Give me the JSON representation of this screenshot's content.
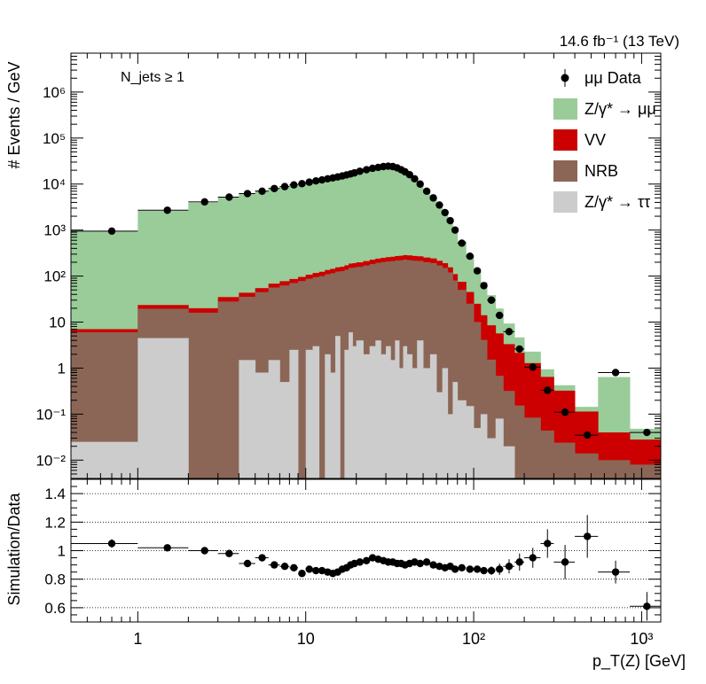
{
  "chart_data": {
    "type": "histogram-stack-with-ratio",
    "lumi_label": "14.6 fb⁻¹ (13 TeV)",
    "selection_label": "N_jets ≥ 1",
    "xlabel": "p_T(Z) [GeV]",
    "ylabel_top": "# Events / GeV",
    "ylabel_bottom": "Simulation/Data",
    "x_scale": "log",
    "xlim": [
      0.4,
      1300
    ],
    "ylim_top": [
      0.004,
      7000000
    ],
    "y_scale_top": "log",
    "ylim_bottom": [
      0.5,
      1.5
    ],
    "x_ticks": [
      "1",
      "10",
      "10²",
      "10³"
    ],
    "y_ticks_top": [
      "10⁻²",
      "10⁻¹",
      "1",
      "10",
      "10²",
      "10³",
      "10⁴",
      "10⁵",
      "10⁶"
    ],
    "y_ticks_bottom": [
      "0.6",
      "0.8",
      "1",
      "1.2",
      "1.4"
    ],
    "legend": [
      {
        "label": "μμ Data",
        "color": "#000000",
        "kind": "marker"
      },
      {
        "label": "Z/γ* → μμ",
        "color": "#99cc99",
        "kind": "fill"
      },
      {
        "label": "VV",
        "color": "#cc0000",
        "kind": "fill"
      },
      {
        "label": "NRB",
        "color": "#8b6656",
        "kind": "fill"
      },
      {
        "label": "Z/γ* → ττ",
        "color": "#cccccc",
        "kind": "fill"
      }
    ],
    "bin_edges": [
      0.4,
      1,
      2,
      3,
      4,
      5,
      6,
      7,
      8,
      9,
      10,
      11,
      12,
      13,
      14,
      15,
      16,
      17,
      18,
      19,
      20,
      22,
      24,
      26,
      28,
      30,
      32,
      34,
      36,
      38,
      40,
      43,
      46,
      50,
      55,
      60,
      65,
      70,
      75,
      80,
      90,
      100,
      110,
      120,
      135,
      150,
      175,
      200,
      250,
      300,
      400,
      550,
      850,
      1300
    ],
    "series": [
      {
        "name": "Z/γ* → ττ",
        "color": "#cccccc",
        "values": [
          0.025,
          4.5,
          0.004,
          0.004,
          1.5,
          0.8,
          1.5,
          0.5,
          2.5,
          0.004,
          2.5,
          3,
          0.004,
          2,
          0.8,
          5,
          0.004,
          2.5,
          6,
          3,
          4,
          2,
          3,
          4,
          2,
          3,
          1.5,
          4,
          1,
          3,
          2,
          1,
          4,
          1,
          2,
          0.3,
          1,
          0.1,
          0.5,
          0.2,
          0.15,
          0.05,
          0.1,
          0.03,
          0.08,
          0.02,
          0.004,
          0.004,
          0.004,
          0.004,
          0.004,
          0.004,
          0.004
        ]
      },
      {
        "name": "NRB",
        "color": "#8b6656",
        "values": [
          6,
          15,
          16,
          28,
          34,
          44,
          55,
          62,
          68,
          78,
          85,
          92,
          100,
          108,
          115,
          120,
          128,
          135,
          145,
          150,
          155,
          168,
          180,
          190,
          200,
          205,
          210,
          215,
          220,
          225,
          220,
          215,
          210,
          200,
          190,
          170,
          150,
          120,
          80,
          50,
          25,
          10,
          4,
          1.5,
          0.6,
          0.3,
          0.15,
          0.08,
          0.04,
          0.02,
          0.01,
          0.006,
          0.004
        ]
      },
      {
        "name": "VV",
        "color": "#cc0000",
        "values": [
          1,
          4,
          4,
          7,
          8,
          10,
          12,
          15,
          16,
          18,
          20,
          22,
          24,
          26,
          28,
          30,
          32,
          34,
          36,
          38,
          40,
          42,
          44,
          46,
          48,
          50,
          52,
          54,
          56,
          58,
          60,
          58,
          55,
          52,
          50,
          45,
          40,
          35,
          30,
          25,
          20,
          15,
          10,
          7,
          5,
          3,
          2,
          1.2,
          0.6,
          0.3,
          0.1,
          0.03,
          0.02
        ]
      },
      {
        "name": "Z/γ* → μμ",
        "color": "#99cc99",
        "values": [
          950,
          2600,
          3900,
          5100,
          6300,
          7300,
          8300,
          8900,
          9700,
          10500,
          11200,
          11800,
          12400,
          13000,
          13600,
          14200,
          14800,
          15500,
          16200,
          17000,
          18500,
          20500,
          22000,
          23500,
          24500,
          25000,
          24500,
          23000,
          21000,
          19000,
          16500,
          13500,
          10500,
          7500,
          5200,
          3600,
          2500,
          1700,
          1000,
          500,
          250,
          120,
          60,
          30,
          14,
          6,
          2.5,
          1,
          0.3,
          0.1,
          0.03,
          0.6,
          0.02
        ]
      }
    ],
    "data": {
      "x": [
        0.7,
        1.5,
        2.5,
        3.5,
        4.5,
        5.5,
        6.5,
        7.5,
        8.5,
        9.5,
        10.5,
        11.5,
        12.5,
        13.5,
        14.5,
        15.5,
        16.5,
        17.5,
        18.5,
        19.5,
        21,
        23,
        25,
        27,
        29,
        31,
        33,
        35,
        37,
        39,
        41.5,
        44.5,
        48,
        52.5,
        57.5,
        62.5,
        67.5,
        72.5,
        77.5,
        85,
        95,
        105,
        115,
        127.5,
        142.5,
        162.5,
        187.5,
        225,
        275,
        350,
        475,
        700,
        1075
      ],
      "y": [
        950,
        2700,
        4100,
        5200,
        6200,
        7000,
        8000,
        8800,
        9600,
        10200,
        11000,
        11700,
        12300,
        13000,
        13600,
        14300,
        15000,
        15800,
        16600,
        17500,
        19000,
        20500,
        22000,
        23000,
        24000,
        24500,
        24000,
        22500,
        20500,
        18500,
        16000,
        13000,
        10000,
        7000,
        5000,
        3500,
        2400,
        1600,
        1000,
        520,
        270,
        130,
        62,
        30,
        14,
        6.2,
        2.6,
        1.05,
        0.33,
        0.11,
        0.035,
        0.8,
        0.04
      ]
    },
    "ratio": {
      "x": [
        0.7,
        1.5,
        2.5,
        3.5,
        4.5,
        5.5,
        6.5,
        7.5,
        8.5,
        9.5,
        10.5,
        11.5,
        12.5,
        13.5,
        14.5,
        15.5,
        16.5,
        17.5,
        18.5,
        19.5,
        21,
        23,
        25,
        27,
        29,
        31,
        33,
        35,
        37,
        39,
        41.5,
        44.5,
        48,
        52.5,
        57.5,
        62.5,
        67.5,
        72.5,
        77.5,
        85,
        95,
        105,
        115,
        127.5,
        142.5,
        162.5,
        187.5,
        225,
        275,
        350,
        475,
        700,
        1075
      ],
      "y": [
        1.05,
        1.02,
        1.0,
        0.98,
        0.91,
        0.95,
        0.9,
        0.89,
        0.88,
        0.84,
        0.87,
        0.86,
        0.86,
        0.85,
        0.84,
        0.85,
        0.87,
        0.88,
        0.9,
        0.91,
        0.92,
        0.93,
        0.95,
        0.94,
        0.93,
        0.92,
        0.92,
        0.91,
        0.91,
        0.9,
        0.91,
        0.92,
        0.91,
        0.92,
        0.9,
        0.89,
        0.88,
        0.89,
        0.87,
        0.88,
        0.87,
        0.87,
        0.86,
        0.86,
        0.87,
        0.89,
        0.92,
        0.95,
        1.05,
        0.92,
        1.1,
        0.85,
        0.61
      ],
      "err": [
        0.03,
        0.02,
        0.02,
        0.02,
        0.02,
        0.02,
        0.01,
        0.01,
        0.01,
        0.01,
        0.01,
        0.01,
        0.01,
        0.01,
        0.01,
        0.01,
        0.01,
        0.01,
        0.01,
        0.01,
        0.01,
        0.01,
        0.01,
        0.01,
        0.01,
        0.01,
        0.01,
        0.01,
        0.01,
        0.01,
        0.01,
        0.01,
        0.01,
        0.01,
        0.01,
        0.01,
        0.01,
        0.01,
        0.01,
        0.02,
        0.02,
        0.02,
        0.02,
        0.03,
        0.04,
        0.05,
        0.06,
        0.07,
        0.1,
        0.12,
        0.15,
        0.08,
        0.1
      ]
    }
  }
}
